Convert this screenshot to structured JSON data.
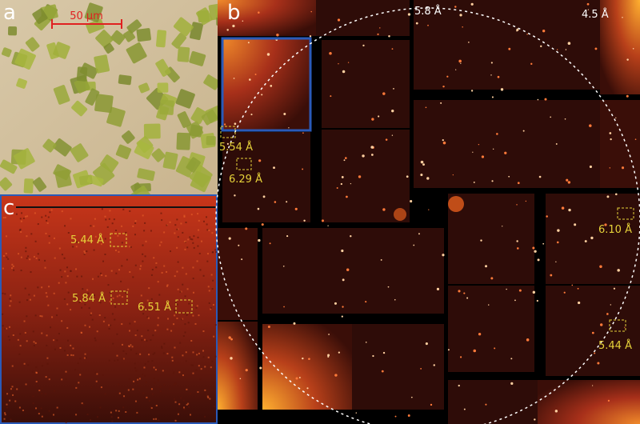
{
  "panels": {
    "a": {
      "label": "a",
      "scale_bar": "50 μm"
    },
    "b": {
      "label": "b",
      "annotations": [
        "5.8 Å",
        "4.5 Å",
        "5.54 Å",
        "6.29 Å",
        "6.10 Å",
        "5.44 Å"
      ]
    },
    "c": {
      "label": "c",
      "annotations": [
        "5.44 Å",
        "5.84 Å",
        "6.51 Å"
      ]
    }
  }
}
